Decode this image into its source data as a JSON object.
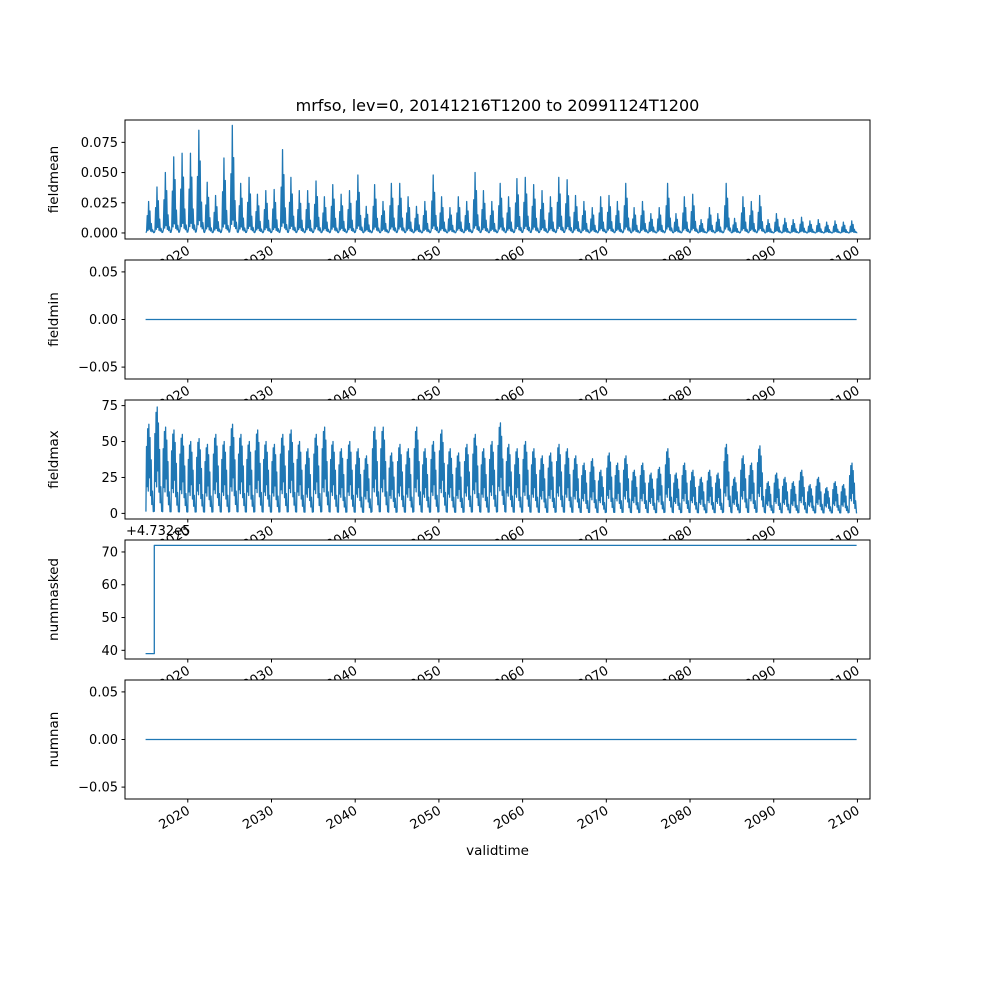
{
  "chart_data": {
    "type": "line",
    "title": "mrfso, lev=0, 20141216T1200 to 20991124T1200",
    "xlabel": "validtime",
    "line_color": "#1f77b4",
    "xlim": [
      2012.5,
      2101.5
    ],
    "x_start": 2014.96,
    "x_end": 2099.9,
    "x_ticks": [
      2020,
      2030,
      2040,
      2050,
      2060,
      2070,
      2080,
      2090,
      2100
    ],
    "x_tick_labels": [
      "2020",
      "2030",
      "2040",
      "2050",
      "2060",
      "2070",
      "2080",
      "2090",
      "2100"
    ],
    "x_tick_rotation_deg": 30,
    "grid": false,
    "legend": "none",
    "subplots": [
      {
        "ylabel": "fieldmean",
        "ylim": [
          -0.005,
          0.0935
        ],
        "yticks": [
          0.0,
          0.025,
          0.05,
          0.075
        ],
        "ytick_labels": [
          "0.000",
          "0.025",
          "0.050",
          "0.075"
        ],
        "series_kind": "annual_spikes",
        "start_year": 2015,
        "profile_x": [
          0.0,
          0.08,
          0.16,
          0.24,
          0.32,
          0.4,
          0.48,
          0.56,
          0.64,
          0.72,
          0.8,
          0.92
        ],
        "profile_y": [
          0.01,
          0.05,
          0.55,
          0.08,
          1.0,
          0.12,
          0.7,
          0.06,
          0.3,
          0.04,
          0.1,
          0.01
        ],
        "annual_peaks": [
          0.026,
          0.038,
          0.05,
          0.063,
          0.066,
          0.066,
          0.085,
          0.042,
          0.031,
          0.062,
          0.089,
          0.041,
          0.046,
          0.032,
          0.035,
          0.036,
          0.069,
          0.046,
          0.035,
          0.035,
          0.043,
          0.03,
          0.04,
          0.032,
          0.035,
          0.048,
          0.022,
          0.04,
          0.026,
          0.041,
          0.041,
          0.03,
          0.022,
          0.026,
          0.048,
          0.03,
          0.021,
          0.03,
          0.026,
          0.05,
          0.035,
          0.026,
          0.041,
          0.03,
          0.045,
          0.046,
          0.04,
          0.035,
          0.03,
          0.046,
          0.044,
          0.031,
          0.026,
          0.021,
          0.03,
          0.031,
          0.026,
          0.041,
          0.021,
          0.026,
          0.016,
          0.021,
          0.041,
          0.016,
          0.03,
          0.032,
          0.011,
          0.021,
          0.016,
          0.041,
          0.012,
          0.03,
          0.026,
          0.031,
          0.011,
          0.016,
          0.012,
          0.011,
          0.013,
          0.01,
          0.011,
          0.009,
          0.01,
          0.009,
          0.01
        ]
      },
      {
        "ylabel": "fieldmin",
        "ylim": [
          -0.0625,
          0.0625
        ],
        "yticks": [
          -0.05,
          0.0,
          0.05
        ],
        "ytick_labels": [
          "−0.05",
          "0.00",
          "0.05"
        ],
        "series_kind": "constant",
        "value": 0
      },
      {
        "ylabel": "fieldmax",
        "ylim": [
          -3.9,
          78.9
        ],
        "yticks": [
          0,
          25,
          50,
          75
        ],
        "ytick_labels": [
          "0",
          "25",
          "50",
          "75"
        ],
        "series_kind": "annual_spikes",
        "start_year": 2015,
        "profile_x": [
          0.0,
          0.07,
          0.14,
          0.21,
          0.28,
          0.35,
          0.42,
          0.49,
          0.56,
          0.63,
          0.7,
          0.78,
          0.88
        ],
        "profile_y": [
          0.02,
          0.75,
          0.3,
          0.95,
          0.25,
          1.0,
          0.4,
          0.85,
          0.2,
          0.6,
          0.1,
          0.25,
          0.02
        ],
        "annual_peaks": [
          62,
          74,
          60,
          58,
          55,
          50,
          52,
          48,
          55,
          50,
          62,
          55,
          50,
          58,
          50,
          48,
          55,
          58,
          50,
          45,
          55,
          60,
          50,
          45,
          50,
          45,
          40,
          60,
          60,
          42,
          48,
          45,
          60,
          45,
          50,
          58,
          45,
          42,
          48,
          55,
          45,
          50,
          63,
          48,
          45,
          50,
          45,
          40,
          42,
          48,
          45,
          40,
          35,
          38,
          30,
          42,
          35,
          40,
          30,
          35,
          28,
          32,
          45,
          28,
          35,
          30,
          25,
          30,
          28,
          48,
          25,
          40,
          35,
          47,
          22,
          28,
          25,
          22,
          30,
          20,
          25,
          18,
          22,
          20,
          35
        ]
      },
      {
        "ylabel": "nummasked",
        "ylim": [
          473237.35,
          473273.65
        ],
        "yticks": [
          473240,
          473250,
          473260,
          473270
        ],
        "ytick_labels": [
          "40",
          "50",
          "60",
          "70"
        ],
        "offset_text": "+4.732e5",
        "series_kind": "step",
        "points_x": [
          2014.96,
          2016.0,
          2016.0,
          2099.9
        ],
        "points_y": [
          473239,
          473239,
          473272,
          473272
        ]
      },
      {
        "ylabel": "numnan",
        "ylim": [
          -0.0625,
          0.0625
        ],
        "yticks": [
          -0.05,
          0.0,
          0.05
        ],
        "ytick_labels": [
          "−0.05",
          "0.00",
          "0.05"
        ],
        "series_kind": "constant",
        "value": 0
      }
    ]
  }
}
